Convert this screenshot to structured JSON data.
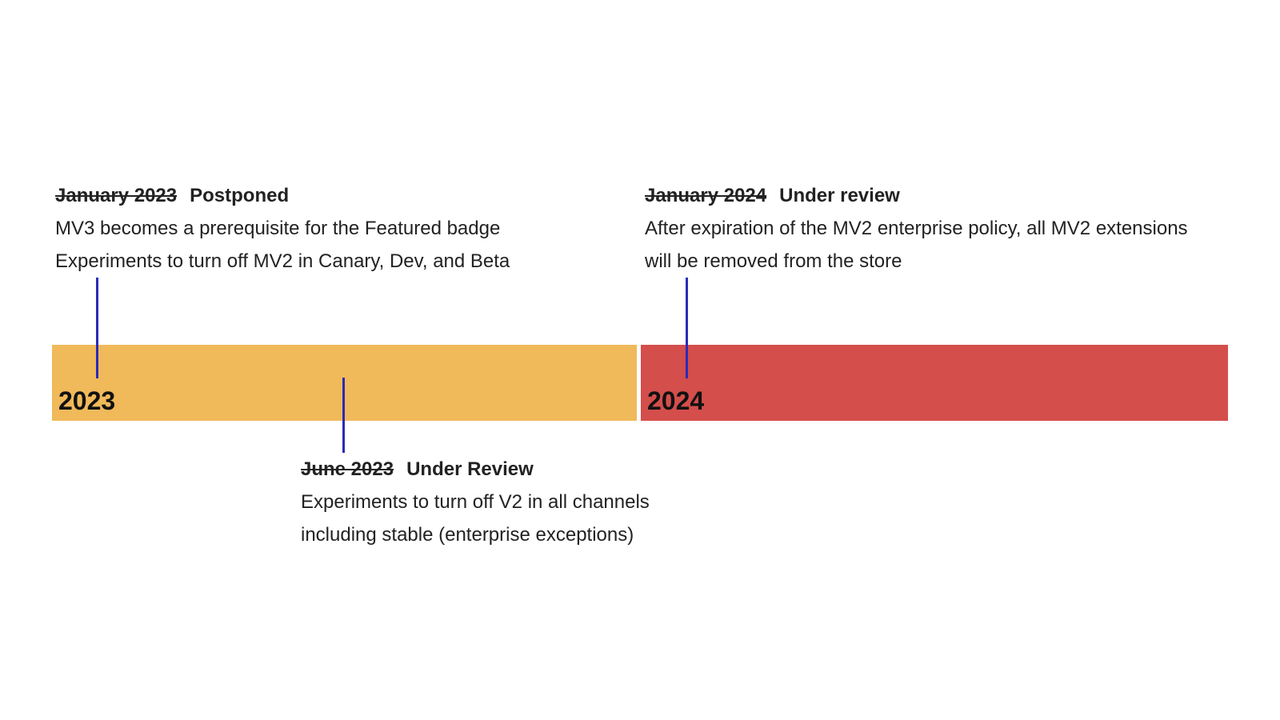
{
  "colors": {
    "bar_2023": "#f0b95a",
    "bar_2024": "#d44e4b",
    "connector": "#2a2ab8"
  },
  "years": {
    "y2023": "2023",
    "y2024": "2024"
  },
  "milestones": {
    "jan2023": {
      "old_date": "January 2023",
      "status": "Postponed",
      "lines": [
        "MV3 becomes a prerequisite for the Featured badge",
        "Experiments to turn off MV2 in Canary, Dev, and Beta"
      ]
    },
    "jan2024": {
      "old_date": "January 2024",
      "status": "Under review",
      "lines": [
        "After expiration of the MV2 enterprise policy, all MV2 extensions",
        "will be removed from the store"
      ]
    },
    "jun2023": {
      "old_date": "June 2023",
      "status": "Under Review",
      "lines": [
        "Experiments to turn off V2 in all channels",
        "including stable (enterprise exceptions)"
      ]
    }
  }
}
